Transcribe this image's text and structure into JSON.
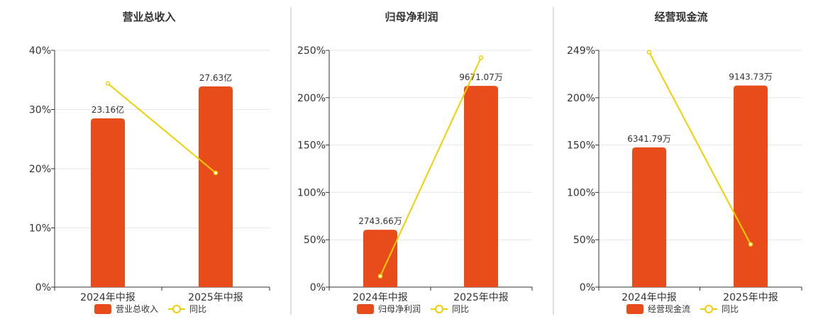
{
  "colors": {
    "bar": "#E84C1B",
    "line": "#F0D000",
    "axis": "#333333",
    "grid": "#E6E6E6",
    "divider": "#BFBFBF",
    "text": "#333333"
  },
  "chart_data": [
    {
      "type": "bar",
      "title": "营业总收入",
      "categories": [
        "2024年中报",
        "2025年中报"
      ],
      "y_ticks": [
        "0%",
        "10%",
        "20%",
        "30%",
        "40%"
      ],
      "ylim": [
        0,
        40
      ],
      "series": [
        {
          "name": "营业总收入",
          "type": "bar",
          "values": [
            28.5,
            33.9
          ],
          "labels": [
            "23.16亿",
            "27.63亿"
          ]
        },
        {
          "name": "同比",
          "type": "line",
          "values": [
            34.4,
            19.3
          ]
        }
      ],
      "legend": "bottom"
    },
    {
      "type": "bar",
      "title": "归母净利润",
      "categories": [
        "2024年中报",
        "2025年中报"
      ],
      "y_ticks": [
        "0%",
        "50%",
        "100%",
        "150%",
        "200%",
        "250%"
      ],
      "ylim": [
        0,
        260
      ],
      "series": [
        {
          "name": "归母净利润",
          "type": "bar",
          "values": [
            63,
            221
          ],
          "labels": [
            "2743.66万",
            "9671.07万"
          ]
        },
        {
          "name": "同比",
          "type": "line",
          "values": [
            12,
            252
          ]
        }
      ],
      "legend": "bottom"
    },
    {
      "type": "bar",
      "title": "经营现金流",
      "categories": [
        "2024年中报",
        "2025年中报"
      ],
      "y_ticks": [
        "0%",
        "50%",
        "100%",
        "150%",
        "200%",
        "249%"
      ],
      "ylim": [
        0,
        249
      ],
      "series": [
        {
          "name": "经营现金流",
          "type": "bar",
          "values": [
            147,
            212
          ],
          "labels": [
            "6341.79万",
            "9143.73万"
          ]
        },
        {
          "name": "同比",
          "type": "line",
          "values": [
            247,
            45
          ]
        }
      ],
      "legend": "bottom"
    }
  ]
}
